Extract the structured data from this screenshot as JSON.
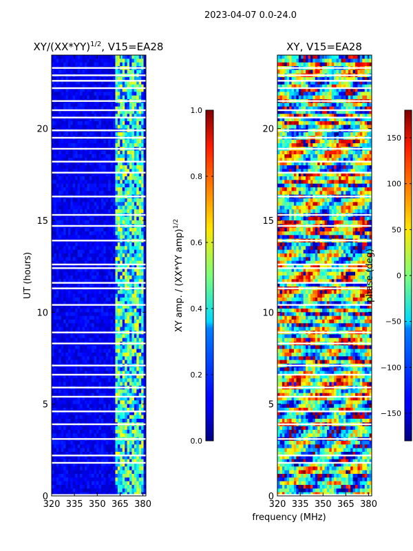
{
  "figure": {
    "suptitle": "2023-04-07 0.0-24.0",
    "xlabel_shared": "frequency (MHz)"
  },
  "chart_data": [
    {
      "type": "heatmap",
      "title_prefix": "XY/(XX*YY)",
      "title_exp": "1/2",
      "title_suffix": ", V15=EA28",
      "xlabel": "",
      "ylabel": "UT (hours)",
      "xlim": [
        320,
        382
      ],
      "ylim": [
        0,
        24
      ],
      "x_ticks": [
        320,
        335,
        350,
        365,
        380
      ],
      "y_ticks": [
        0,
        5,
        10,
        15,
        20
      ],
      "colorbar": {
        "label_main": "XY amp. / (XX*YY amp)",
        "label_exp": "1/2",
        "range": [
          0.0,
          1.0
        ],
        "ticks": [
          "0.0",
          "0.2",
          "0.4",
          "0.6",
          "0.8",
          "1.0"
        ],
        "tick_values": [
          0,
          0.2,
          0.4,
          0.6,
          0.8,
          1.0
        ]
      },
      "description": "Mostly low amplitude (~0.05-0.15) across 320-362 MHz; enhanced amplitude (~0.3-0.6) in a band from ~362 to ~380 MHz; blank rows where data are flagged."
    },
    {
      "type": "heatmap",
      "title": "XY, V15=EA28",
      "xlabel": "",
      "ylabel": "",
      "xlim": [
        320,
        382
      ],
      "ylim": [
        0,
        24
      ],
      "x_ticks": [
        320,
        335,
        350,
        365,
        380
      ],
      "y_ticks": [
        0,
        5,
        10,
        15,
        20
      ],
      "colorbar": {
        "label": "phase (deg)",
        "range": [
          -180,
          180
        ],
        "ticks": [
          "150",
          "100",
          "50",
          "0",
          "−50",
          "−100",
          "−150"
        ],
        "tick_values": [
          150,
          100,
          50,
          0,
          -50,
          -100,
          -150
        ]
      },
      "description": "Phase varies widely across full -180 to 180 deg range with horizontal banding in time."
    }
  ],
  "flagged_rows": [
    0.05,
    1.8,
    2.2,
    3.1,
    3.9,
    4.6,
    5.4,
    5.9,
    6.6,
    7.1,
    8.3,
    8.9,
    10.4,
    11.3,
    11.6,
    12.4,
    12.6,
    13.9,
    14.7,
    15.3,
    16.3,
    17.6,
    18.2,
    18.9,
    19.5,
    19.9,
    20.6,
    21.0,
    21.5,
    22.2,
    22.6,
    22.9,
    23.3
  ]
}
